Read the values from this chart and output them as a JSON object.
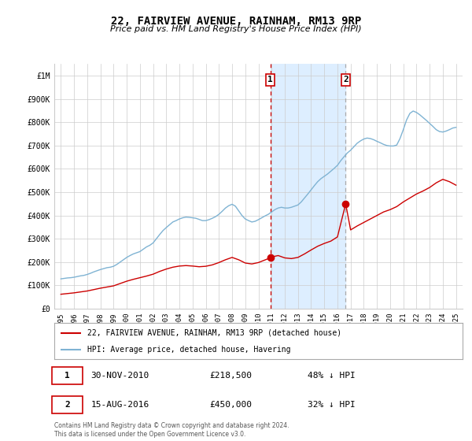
{
  "title": "22, FAIRVIEW AVENUE, RAINHAM, RM13 9RP",
  "subtitle": "Price paid vs. HM Land Registry's House Price Index (HPI)",
  "xlim": [
    1994.5,
    2025.5
  ],
  "ylim": [
    0,
    1050000
  ],
  "yticks": [
    0,
    100000,
    200000,
    300000,
    400000,
    500000,
    600000,
    700000,
    800000,
    900000,
    1000000
  ],
  "ytick_labels": [
    "£0",
    "£100K",
    "£200K",
    "£300K",
    "£400K",
    "£500K",
    "£600K",
    "£700K",
    "£800K",
    "£900K",
    "£1M"
  ],
  "xticks": [
    1995,
    1996,
    1997,
    1998,
    1999,
    2000,
    2001,
    2002,
    2003,
    2004,
    2005,
    2006,
    2007,
    2008,
    2009,
    2010,
    2011,
    2012,
    2013,
    2014,
    2015,
    2016,
    2017,
    2018,
    2019,
    2020,
    2021,
    2022,
    2023,
    2024,
    2025
  ],
  "sale1_date": 2010.917,
  "sale1_price": 218500,
  "sale1_label": "1",
  "sale1_display": "30-NOV-2010",
  "sale1_price_str": "£218,500",
  "sale1_pct": "48% ↓ HPI",
  "sale2_date": 2016.625,
  "sale2_price": 450000,
  "sale2_label": "2",
  "sale2_display": "15-AUG-2016",
  "sale2_price_str": "£450,000",
  "sale2_pct": "32% ↓ HPI",
  "highlight_start": 2010.917,
  "highlight_end": 2016.625,
  "red_line_color": "#cc0000",
  "blue_line_color": "#7fb3d3",
  "highlight_color": "#ddeeff",
  "grid_color": "#cccccc",
  "background_color": "#ffffff",
  "legend_label_red": "22, FAIRVIEW AVENUE, RAINHAM, RM13 9RP (detached house)",
  "legend_label_blue": "HPI: Average price, detached house, Havering",
  "footer": "Contains HM Land Registry data © Crown copyright and database right 2024.\nThis data is licensed under the Open Government Licence v3.0.",
  "hpi_x": [
    1995.0,
    1995.25,
    1995.5,
    1995.75,
    1996.0,
    1996.25,
    1996.5,
    1996.75,
    1997.0,
    1997.25,
    1997.5,
    1997.75,
    1998.0,
    1998.25,
    1998.5,
    1998.75,
    1999.0,
    1999.25,
    1999.5,
    1999.75,
    2000.0,
    2000.25,
    2000.5,
    2000.75,
    2001.0,
    2001.25,
    2001.5,
    2001.75,
    2002.0,
    2002.25,
    2002.5,
    2002.75,
    2003.0,
    2003.25,
    2003.5,
    2003.75,
    2004.0,
    2004.25,
    2004.5,
    2004.75,
    2005.0,
    2005.25,
    2005.5,
    2005.75,
    2006.0,
    2006.25,
    2006.5,
    2006.75,
    2007.0,
    2007.25,
    2007.5,
    2007.75,
    2008.0,
    2008.25,
    2008.5,
    2008.75,
    2009.0,
    2009.25,
    2009.5,
    2009.75,
    2010.0,
    2010.25,
    2010.5,
    2010.75,
    2011.0,
    2011.25,
    2011.5,
    2011.75,
    2012.0,
    2012.25,
    2012.5,
    2012.75,
    2013.0,
    2013.25,
    2013.5,
    2013.75,
    2014.0,
    2014.25,
    2014.5,
    2014.75,
    2015.0,
    2015.25,
    2015.5,
    2015.75,
    2016.0,
    2016.25,
    2016.5,
    2016.75,
    2017.0,
    2017.25,
    2017.5,
    2017.75,
    2018.0,
    2018.25,
    2018.5,
    2018.75,
    2019.0,
    2019.25,
    2019.5,
    2019.75,
    2020.0,
    2020.25,
    2020.5,
    2020.75,
    2021.0,
    2021.25,
    2021.5,
    2021.75,
    2022.0,
    2022.25,
    2022.5,
    2022.75,
    2023.0,
    2023.25,
    2023.5,
    2023.75,
    2024.0,
    2024.25,
    2024.5,
    2024.75,
    2025.0
  ],
  "hpi_y": [
    128000,
    130000,
    132000,
    133000,
    135000,
    138000,
    141000,
    143000,
    147000,
    152000,
    158000,
    163000,
    168000,
    172000,
    176000,
    178000,
    182000,
    190000,
    200000,
    210000,
    220000,
    228000,
    235000,
    240000,
    245000,
    255000,
    265000,
    272000,
    282000,
    300000,
    318000,
    335000,
    348000,
    360000,
    372000,
    378000,
    385000,
    390000,
    393000,
    392000,
    390000,
    388000,
    383000,
    378000,
    378000,
    382000,
    388000,
    395000,
    405000,
    418000,
    432000,
    442000,
    448000,
    440000,
    420000,
    400000,
    385000,
    378000,
    372000,
    375000,
    382000,
    390000,
    398000,
    405000,
    415000,
    425000,
    432000,
    435000,
    432000,
    432000,
    435000,
    440000,
    445000,
    458000,
    475000,
    492000,
    510000,
    528000,
    545000,
    558000,
    568000,
    578000,
    590000,
    602000,
    615000,
    635000,
    652000,
    668000,
    680000,
    695000,
    710000,
    720000,
    728000,
    732000,
    730000,
    725000,
    718000,
    712000,
    705000,
    700000,
    698000,
    698000,
    702000,
    730000,
    768000,
    810000,
    838000,
    848000,
    842000,
    832000,
    820000,
    808000,
    795000,
    782000,
    768000,
    760000,
    758000,
    762000,
    768000,
    775000,
    778000
  ],
  "red_x": [
    1995.0,
    1995.5,
    1996.0,
    1996.5,
    1997.0,
    1997.5,
    1998.0,
    1998.5,
    1999.0,
    1999.5,
    2000.0,
    2000.5,
    2001.0,
    2001.5,
    2002.0,
    2002.5,
    2003.0,
    2003.5,
    2004.0,
    2004.5,
    2005.0,
    2005.5,
    2006.0,
    2006.5,
    2007.0,
    2007.5,
    2008.0,
    2008.5,
    2009.0,
    2009.5,
    2010.0,
    2010.917,
    2011.0,
    2011.5,
    2012.0,
    2012.5,
    2013.0,
    2013.5,
    2014.0,
    2014.5,
    2015.0,
    2015.5,
    2016.0,
    2016.625,
    2017.0,
    2017.5,
    2018.0,
    2018.5,
    2019.0,
    2019.5,
    2020.0,
    2020.5,
    2021.0,
    2021.5,
    2022.0,
    2022.5,
    2023.0,
    2023.5,
    2024.0,
    2024.5,
    2025.0
  ],
  "red_y": [
    62000,
    65000,
    68000,
    72000,
    76000,
    82000,
    88000,
    93000,
    98000,
    108000,
    118000,
    126000,
    133000,
    140000,
    148000,
    160000,
    170000,
    178000,
    183000,
    185000,
    183000,
    180000,
    182000,
    188000,
    198000,
    210000,
    220000,
    210000,
    196000,
    192000,
    198000,
    218500,
    222000,
    228000,
    218000,
    215000,
    220000,
    235000,
    252000,
    268000,
    280000,
    290000,
    308000,
    450000,
    338000,
    355000,
    370000,
    385000,
    400000,
    415000,
    425000,
    438000,
    458000,
    475000,
    492000,
    505000,
    520000,
    540000,
    555000,
    545000,
    530000
  ]
}
